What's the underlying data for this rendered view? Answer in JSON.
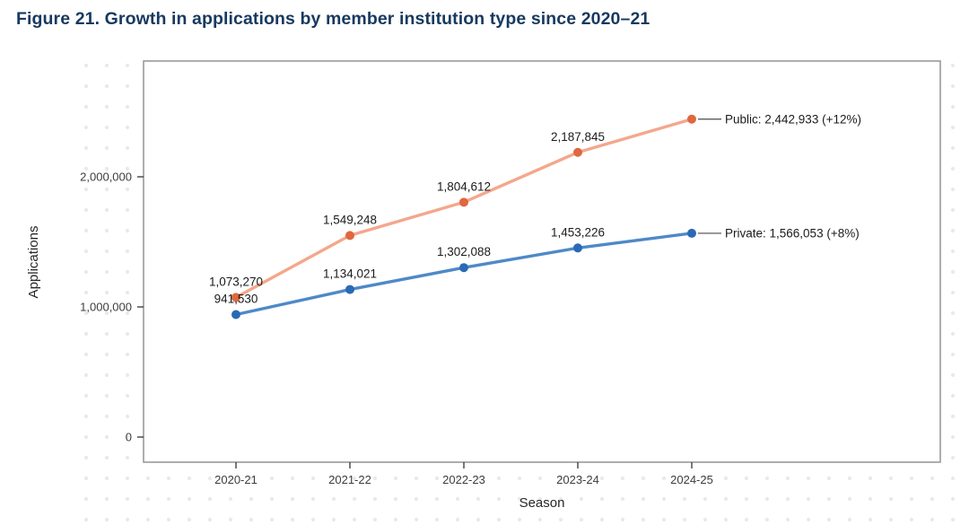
{
  "title": "Figure 21. Growth in applications by member institution type since 2020–21",
  "style": {
    "title_color": "#17395f",
    "panel_border": "#999999",
    "panel_fill": "#ffffff",
    "dot_color": "#e9e9e9",
    "tick_color": "#333333",
    "connector_color": "#4a4a4a"
  },
  "chart_data": {
    "type": "line",
    "title": "Figure 21. Growth in applications by member institution type since 2020–21",
    "xlabel": "Season",
    "ylabel": "Applications",
    "categories": [
      "2020-21",
      "2021-22",
      "2022-23",
      "2023-24",
      "2024-25"
    ],
    "yticks": [
      0,
      1000000,
      2000000
    ],
    "ytick_labels": [
      "0",
      "1,000,000",
      "2,000,000"
    ],
    "ylim": [
      0,
      2890000
    ],
    "grid": false,
    "legend_position": "end-of-line-labels",
    "series": [
      {
        "name": "Public",
        "line_color": "#f4a78c",
        "marker_color": "#e0673f",
        "values": [
          1073270,
          1549248,
          1804612,
          2187845,
          2442933
        ],
        "value_labels": [
          "1,073,270",
          "1,549,248",
          "1,804,612",
          "2,187,845",
          "2,442,933"
        ],
        "end_label": "Public: 2,442,933 (+12%)"
      },
      {
        "name": "Private",
        "line_color": "#4e89c8",
        "marker_color": "#2a6ab5",
        "values": [
          941530,
          1134021,
          1302088,
          1453226,
          1566053
        ],
        "value_labels": [
          "941,530",
          "1,134,021",
          "1,302,088",
          "1,453,226",
          "1,566,053"
        ],
        "end_label": "Private: 1,566,053 (+8%)"
      }
    ]
  }
}
